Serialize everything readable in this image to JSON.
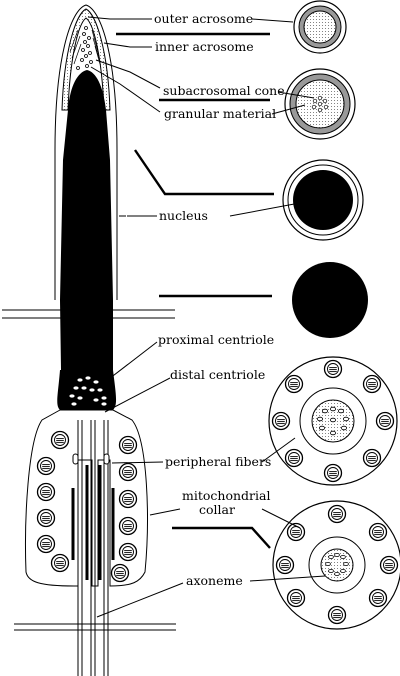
{
  "diagram": {
    "labels": {
      "outer_acrosome": "outer acrosome",
      "inner_acrosome": "inner acrosome",
      "subacrosomal_cone": "subacrosomal cone",
      "granular_material": "granular material",
      "nucleus": "nucleus",
      "proximal_centriole": "proximal centriole",
      "distal_centriole": "distal centriole",
      "peripheral_fibers": "peripheral fibers",
      "mitochondrial_collar_1": "mitochondrial",
      "mitochondrial_collar_2": "collar",
      "axoneme": "axoneme"
    }
  }
}
